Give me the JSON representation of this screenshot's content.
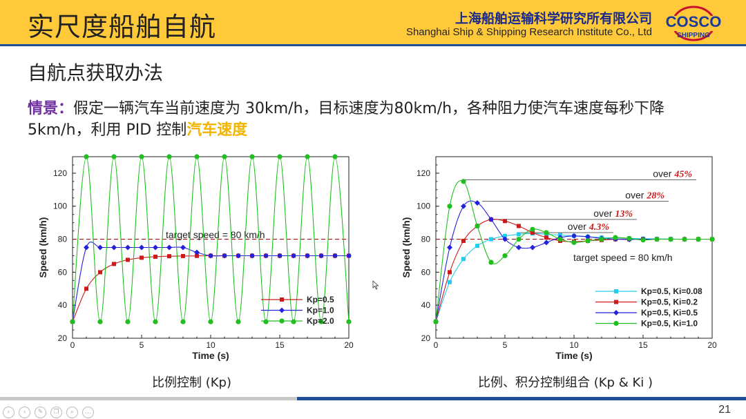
{
  "header": {
    "title": "实尺度船舶自航",
    "company_cn": "上海船舶运输科学研究所有限公司",
    "company_en": "Shanghai Ship & Shipping Research Institute Co., Ltd",
    "logo_top": "COSCO",
    "logo_bottom": "SHIPPING"
  },
  "section_title": "自航点获取办法",
  "scenario": {
    "label": "情景：",
    "text": "假定一辆汽车当前速度为 30km/h，目标速度为80km/h，各种阻力使汽车速度每秒下降 5km/h，利用 PID 控制",
    "highlight": "汽车速度"
  },
  "captions": {
    "left": "比例控制 (Kp)",
    "right": "比例、积分控制组合 (Kp & Ki )"
  },
  "page_number": "21",
  "nav_icons": [
    "prev-icon",
    "next-icon",
    "pen-icon",
    "copy-icon",
    "zoom-icon",
    "more-icon"
  ],
  "chart_data": [
    {
      "type": "line",
      "xlabel": "Time (s)",
      "ylabel": "Speed (km/h)",
      "xlim": [
        0,
        20
      ],
      "ylim": [
        20,
        130
      ],
      "xticks": [
        0,
        5,
        10,
        15,
        20
      ],
      "yticks": [
        20,
        40,
        60,
        80,
        100,
        120
      ],
      "target": 80,
      "target_label": "target speed = 80 km/h",
      "legend_position": "lower-right",
      "series": [
        {
          "name": "Kp=0.5",
          "color": "#cc1a1a",
          "marker": "square",
          "x": [
            0,
            1,
            2,
            3,
            4,
            5,
            6,
            7,
            8,
            9,
            10,
            11,
            12,
            13,
            14,
            15,
            16,
            17,
            18,
            19,
            20
          ],
          "values": [
            30,
            50,
            60,
            65,
            67.5,
            68.8,
            69.4,
            69.7,
            69.8,
            69.9,
            70,
            70,
            70,
            70,
            70,
            70,
            70,
            70,
            70,
            70,
            70
          ]
        },
        {
          "name": "Kp=1.0",
          "color": "#2222dd",
          "marker": "diamond",
          "x": [
            0,
            1,
            2,
            3,
            4,
            5,
            6,
            7,
            8,
            9,
            10,
            11,
            12,
            13,
            14,
            15,
            16,
            17,
            18,
            19,
            20
          ],
          "values": [
            30,
            75,
            75,
            75,
            75,
            75,
            75,
            75,
            75,
            72,
            70,
            70,
            70,
            70,
            70,
            70,
            70,
            70,
            70,
            70,
            70
          ]
        },
        {
          "name": "Kp=2.0",
          "color": "#1fbf1f",
          "marker": "circle",
          "x": [
            0,
            1,
            2,
            3,
            4,
            5,
            6,
            7,
            8,
            9,
            10,
            11,
            12,
            13,
            14,
            15,
            16,
            17,
            18,
            19,
            20
          ],
          "values": [
            30,
            130,
            30,
            130,
            30,
            130,
            30,
            130,
            30,
            130,
            30,
            130,
            30,
            130,
            30,
            130,
            30,
            130,
            30,
            130,
            30
          ]
        }
      ]
    },
    {
      "type": "line",
      "xlabel": "Time (s)",
      "ylabel": "Speed (km/h)",
      "xlim": [
        0,
        20
      ],
      "ylim": [
        20,
        130
      ],
      "xticks": [
        0,
        5,
        10,
        15,
        20
      ],
      "yticks": [
        20,
        40,
        60,
        80,
        100,
        120
      ],
      "target": 80,
      "target_label": "target speed = 80 km/h",
      "legend_position": "lower-right",
      "overshoot_labels": [
        {
          "prefix": "over",
          "value": "45%",
          "level": 116
        },
        {
          "prefix": "over",
          "value": "28%",
          "level": 103
        },
        {
          "prefix": "over",
          "value": "13%",
          "level": 92
        },
        {
          "prefix": "over",
          "value": "4.3%",
          "level": 84
        }
      ],
      "series": [
        {
          "name": "Kp=0.5, Ki=0.08",
          "color": "#22ccee",
          "marker": "square",
          "x": [
            0,
            1,
            2,
            3,
            4,
            5,
            6,
            7,
            8,
            9,
            10,
            11,
            12,
            13,
            14,
            15,
            16,
            17,
            18,
            19,
            20
          ],
          "values": [
            30,
            54,
            68,
            76,
            80,
            82,
            83,
            83.5,
            83,
            82.5,
            82,
            81.5,
            81,
            80.8,
            80.5,
            80.3,
            80.2,
            80.1,
            80,
            80,
            80
          ]
        },
        {
          "name": "Kp=0.5, Ki=0.2",
          "color": "#cc1a1a",
          "marker": "square",
          "x": [
            0,
            1,
            2,
            3,
            4,
            5,
            6,
            7,
            8,
            9,
            10,
            11,
            12,
            13,
            14,
            15,
            16,
            17,
            18,
            19,
            20
          ],
          "values": [
            30,
            60,
            79,
            88,
            92,
            91,
            88,
            84,
            81,
            79,
            78.5,
            79,
            79.5,
            80,
            80,
            80,
            80,
            80,
            80,
            80,
            80
          ]
        },
        {
          "name": "Kp=0.5, Ki=0.5",
          "color": "#2222dd",
          "marker": "diamond",
          "x": [
            0,
            1,
            2,
            3,
            4,
            5,
            6,
            7,
            8,
            9,
            10,
            11,
            12,
            13,
            14,
            15,
            16,
            17,
            18,
            19,
            20
          ],
          "values": [
            30,
            75,
            100,
            102,
            92,
            80,
            75,
            75,
            78,
            81,
            82,
            81.5,
            80.5,
            80,
            79.8,
            80,
            80,
            80,
            80,
            80,
            80
          ]
        },
        {
          "name": "Kp=0.5, Ki=1.0",
          "color": "#1fbf1f",
          "marker": "circle",
          "x": [
            0,
            1,
            2,
            3,
            4,
            5,
            6,
            7,
            8,
            9,
            10,
            11,
            12,
            13,
            14,
            15,
            16,
            17,
            18,
            19,
            20
          ],
          "values": [
            30,
            100,
            115,
            88,
            66,
            70,
            80,
            86,
            84,
            80,
            78,
            79,
            80,
            81,
            80.5,
            79.5,
            80,
            80,
            80,
            80,
            80
          ]
        }
      ]
    }
  ]
}
